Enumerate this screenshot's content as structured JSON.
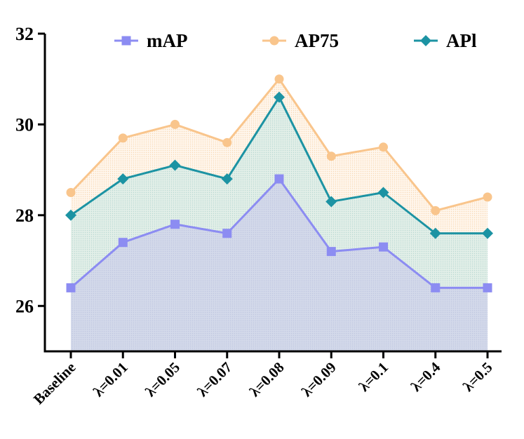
{
  "chart_data": {
    "type": "line",
    "categories": [
      "Baseline",
      "λ=0.01",
      "λ=0.05",
      "λ=0.07",
      "λ=0.08",
      "λ=0.09",
      "λ=0.1",
      "λ=0.4",
      "λ=0.5"
    ],
    "series": [
      {
        "name": "mAP",
        "values": [
          26.4,
          27.4,
          27.8,
          27.6,
          28.8,
          27.2,
          27.3,
          26.4,
          26.4
        ],
        "color": "#8c8cf2",
        "marker": "square"
      },
      {
        "name": "AP75",
        "values": [
          28.5,
          29.7,
          30.0,
          29.6,
          31.0,
          29.3,
          29.5,
          28.1,
          28.4
        ],
        "color": "#f9c58c",
        "marker": "circle"
      },
      {
        "name": "APl",
        "values": [
          28.0,
          28.8,
          29.1,
          28.8,
          30.6,
          28.3,
          28.5,
          27.6,
          27.6
        ],
        "color": "#1c93a3",
        "marker": "diamond"
      }
    ],
    "ylim": [
      25,
      32
    ],
    "yticks": [
      26,
      28,
      30,
      32
    ],
    "legend_position": "top",
    "area_fill": true,
    "grid": false
  }
}
